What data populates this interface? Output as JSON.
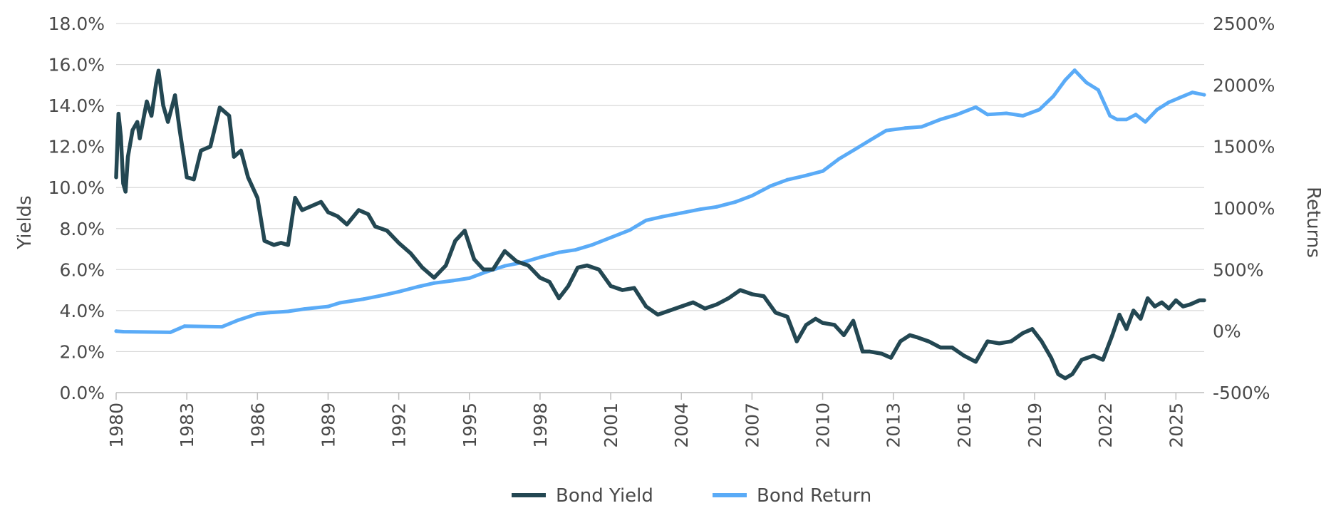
{
  "chart_data": {
    "type": "line",
    "title": "",
    "xlabel": "",
    "ylabel_left": "Yields",
    "ylabel_right": "Returns",
    "x_range": [
      1980,
      2026.2
    ],
    "x_ticks": [
      "1980",
      "1983",
      "1986",
      "1989",
      "1992",
      "1995",
      "1998",
      "2001",
      "2004",
      "2007",
      "2010",
      "2013",
      "2016",
      "2019",
      "2022",
      "2025"
    ],
    "y_left_range": [
      0,
      18
    ],
    "y_left_ticks": [
      "0.0%",
      "2.0%",
      "4.0%",
      "6.0%",
      "8.0%",
      "10.0%",
      "12.0%",
      "14.0%",
      "16.0%",
      "18.0%"
    ],
    "y_right_range": [
      -500,
      2500
    ],
    "y_right_ticks": [
      "-500%",
      "0%",
      "500%",
      "1000%",
      "1500%",
      "2000%",
      "2500%"
    ],
    "grid": "horizontal",
    "legend_position": "bottom-center",
    "series": [
      {
        "name": "Bond Yield",
        "axis": "left",
        "unit": "%",
        "color": "#234752",
        "x": [
          1980.0,
          1980.1,
          1980.2,
          1980.3,
          1980.4,
          1980.5,
          1980.7,
          1980.9,
          1981.0,
          1981.3,
          1981.5,
          1981.7,
          1981.8,
          1982.0,
          1982.2,
          1982.5,
          1982.7,
          1983.0,
          1983.3,
          1983.6,
          1984.0,
          1984.4,
          1984.8,
          1985.0,
          1985.3,
          1985.6,
          1986.0,
          1986.3,
          1986.7,
          1987.0,
          1987.3,
          1987.6,
          1987.9,
          1988.3,
          1988.7,
          1989.0,
          1989.4,
          1989.8,
          1990.3,
          1990.7,
          1991.0,
          1991.5,
          1992.0,
          1992.5,
          1993.0,
          1993.5,
          1994.0,
          1994.4,
          1994.8,
          1995.2,
          1995.6,
          1996.0,
          1996.5,
          1997.0,
          1997.5,
          1998.0,
          1998.4,
          1998.8,
          1999.2,
          1999.6,
          2000.0,
          2000.5,
          2001.0,
          2001.5,
          2002.0,
          2002.5,
          2003.0,
          2003.5,
          2004.0,
          2004.5,
          2005.0,
          2005.5,
          2006.0,
          2006.5,
          2007.0,
          2007.5,
          2008.0,
          2008.5,
          2008.9,
          2009.3,
          2009.7,
          2010.0,
          2010.5,
          2010.9,
          2011.3,
          2011.7,
          2012.0,
          2012.5,
          2012.9,
          2013.3,
          2013.7,
          2014.0,
          2014.5,
          2015.0,
          2015.5,
          2016.0,
          2016.5,
          2017.0,
          2017.5,
          2018.0,
          2018.5,
          2018.9,
          2019.3,
          2019.7,
          2020.0,
          2020.3,
          2020.6,
          2021.0,
          2021.5,
          2021.9,
          2022.3,
          2022.6,
          2022.9,
          2023.2,
          2023.5,
          2023.8,
          2024.1,
          2024.4,
          2024.7,
          2025.0,
          2025.3,
          2025.6,
          2026.0,
          2026.2
        ],
        "values": [
          10.5,
          13.6,
          12.5,
          10.2,
          9.8,
          11.5,
          12.8,
          13.2,
          12.4,
          14.2,
          13.5,
          15.1,
          15.7,
          14.0,
          13.2,
          14.5,
          12.8,
          10.5,
          10.4,
          11.8,
          12.0,
          13.9,
          13.5,
          11.5,
          11.8,
          10.5,
          9.5,
          7.4,
          7.2,
          7.3,
          7.2,
          9.5,
          8.9,
          9.1,
          9.3,
          8.8,
          8.6,
          8.2,
          8.9,
          8.7,
          8.1,
          7.9,
          7.3,
          6.8,
          6.1,
          5.6,
          6.2,
          7.4,
          7.9,
          6.5,
          6.0,
          6.0,
          6.9,
          6.4,
          6.2,
          5.6,
          5.4,
          4.6,
          5.2,
          6.1,
          6.2,
          6.0,
          5.2,
          5.0,
          5.1,
          4.2,
          3.8,
          4.0,
          4.2,
          4.4,
          4.1,
          4.3,
          4.6,
          5.0,
          4.8,
          4.7,
          3.9,
          3.7,
          2.5,
          3.3,
          3.6,
          3.4,
          3.3,
          2.8,
          3.5,
          2.0,
          2.0,
          1.9,
          1.7,
          2.5,
          2.8,
          2.7,
          2.5,
          2.2,
          2.2,
          1.8,
          1.5,
          2.5,
          2.4,
          2.5,
          2.9,
          3.1,
          2.5,
          1.7,
          0.9,
          0.7,
          0.9,
          1.6,
          1.8,
          1.6,
          2.8,
          3.8,
          3.1,
          4.0,
          3.6,
          4.6,
          4.2,
          4.4,
          4.1,
          4.5,
          4.2,
          4.3,
          4.5,
          4.5
        ]
      },
      {
        "name": "Bond Return",
        "axis": "right",
        "unit": "%",
        "color": "#5aabf7",
        "x": [
          1980.0,
          1980.3,
          1982.3,
          1982.9,
          1984.5,
          1985.2,
          1986.0,
          1986.5,
          1987.3,
          1988.0,
          1989.0,
          1989.5,
          1990.5,
          1991.3,
          1992.0,
          1992.8,
          1993.5,
          1994.3,
          1995.0,
          1995.7,
          1996.5,
          1997.3,
          1998.0,
          1998.8,
          1999.5,
          2000.2,
          2001.0,
          2001.8,
          2002.5,
          2003.2,
          2004.0,
          2004.8,
          2005.5,
          2006.3,
          2007.0,
          2007.8,
          2008.5,
          2009.2,
          2010.0,
          2010.7,
          2011.4,
          2012.0,
          2012.7,
          2013.5,
          2014.2,
          2015.0,
          2015.7,
          2016.5,
          2017.0,
          2017.8,
          2018.5,
          2019.2,
          2019.8,
          2020.3,
          2020.7,
          2021.2,
          2021.7,
          2022.2,
          2022.5,
          2022.9,
          2023.3,
          2023.7,
          2024.2,
          2024.7,
          2025.2,
          2025.7,
          2026.2
        ],
        "values": [
          0,
          -5,
          -10,
          40,
          35,
          90,
          140,
          150,
          160,
          180,
          200,
          230,
          260,
          290,
          320,
          360,
          390,
          410,
          430,
          480,
          530,
          560,
          600,
          640,
          660,
          700,
          760,
          820,
          900,
          930,
          960,
          990,
          1010,
          1050,
          1100,
          1180,
          1230,
          1260,
          1300,
          1400,
          1480,
          1550,
          1630,
          1650,
          1660,
          1720,
          1760,
          1820,
          1760,
          1770,
          1750,
          1800,
          1910,
          2040,
          2120,
          2020,
          1960,
          1750,
          1720,
          1720,
          1760,
          1700,
          1800,
          1860,
          1900,
          1940,
          1920
        ]
      }
    ]
  }
}
